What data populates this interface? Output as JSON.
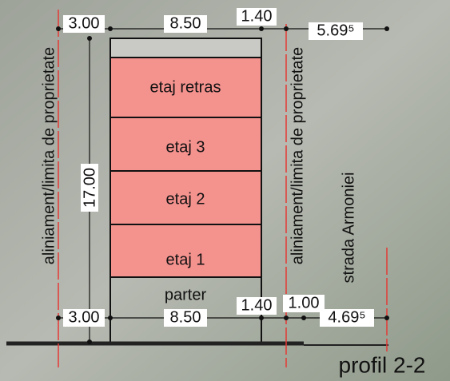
{
  "dimensions_top": [
    "3.00",
    "8.50",
    "1.40",
    "5.69⁵"
  ],
  "dimensions_bottom": [
    "3.00",
    "8.50",
    "1.40",
    "1.00",
    "4.69⁵"
  ],
  "height": "17.00",
  "property_line_labels": [
    "aliniament/limita de proprietate",
    "aliniament/limita de proprietate"
  ],
  "street": "strada Armoniei",
  "floors": [
    "etaj retras",
    "etaj 3",
    "etaj 2",
    "etaj 1",
    "parter"
  ],
  "caption": "profil 2-2"
}
